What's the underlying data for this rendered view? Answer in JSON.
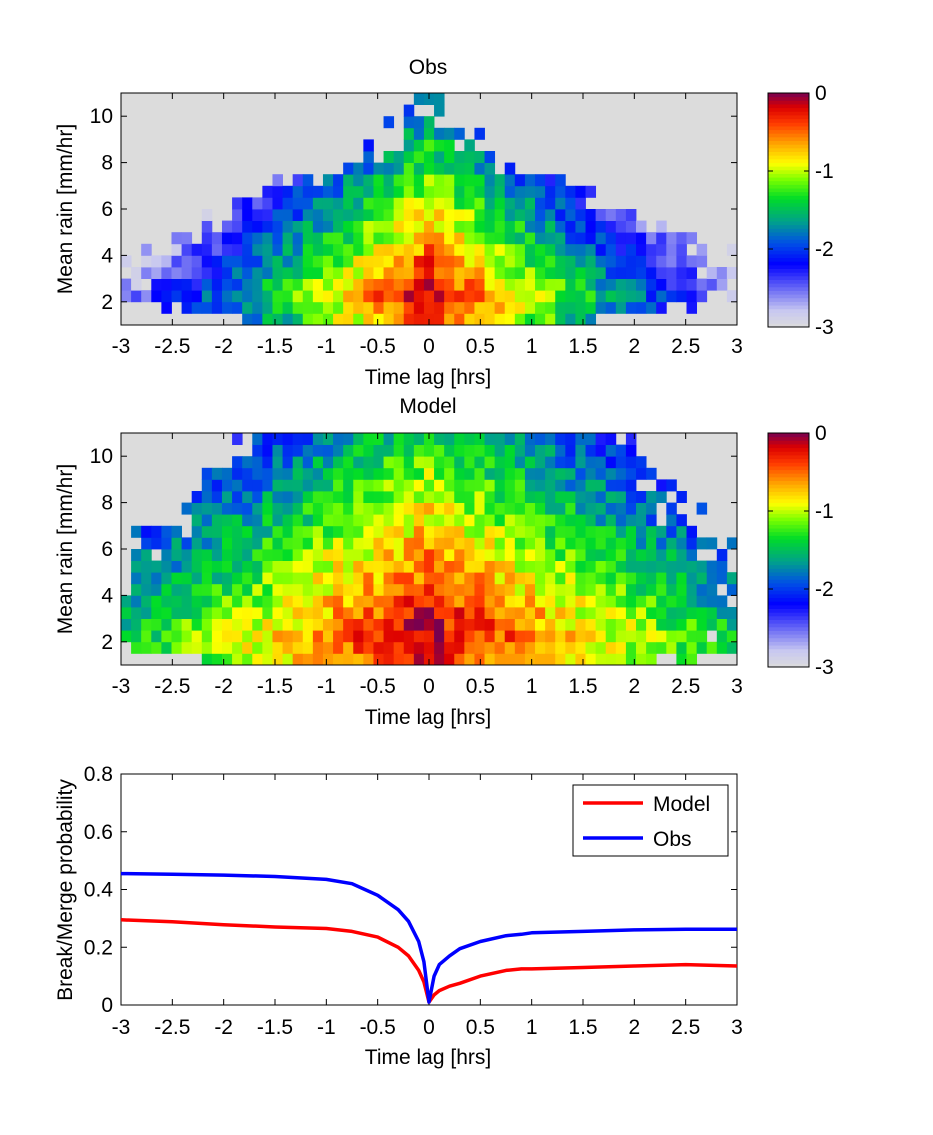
{
  "chart_data": [
    {
      "type": "heatmap",
      "title": "Obs",
      "xlabel": "Time lag [hrs]",
      "ylabel": "Mean rain [mm/hr]",
      "xlim": [
        -3,
        3
      ],
      "ylim": [
        1,
        11
      ],
      "xticks": [
        -3,
        -2.5,
        -2,
        -1.5,
        -1,
        -0.5,
        0,
        0.5,
        1,
        1.5,
        2,
        2.5,
        3
      ],
      "xtick_labels": [
        "-3",
        "-2.5",
        "-2",
        "-1.5",
        "-1",
        "-0.5",
        "0",
        "0.5",
        "1",
        "1.5",
        "2",
        "2.5",
        "3"
      ],
      "yticks": [
        2,
        4,
        6,
        8,
        10
      ],
      "ytick_labels": [
        "2",
        "4",
        "6",
        "8",
        "10"
      ],
      "colorbar": {
        "range": [
          -3,
          0
        ],
        "ticks": [
          0,
          -1,
          -2,
          -3
        ],
        "tick_labels": [
          "0",
          "-1",
          "-2",
          "-3"
        ]
      },
      "value_scale": "log10 probability",
      "shape": "peak near lag 0 at low rain (~2 mm/hr), values decreasing with |lag| and with rain rate; tail to ~10 mm/hr only near lag 0",
      "profile": {
        "lag_width_at_rain": [
          [
            1.0,
            1.3
          ],
          [
            2.0,
            3.0
          ],
          [
            3.0,
            2.9
          ],
          [
            4.0,
            2.8
          ],
          [
            5.0,
            2.3
          ],
          [
            6.0,
            1.9
          ],
          [
            7.0,
            1.5
          ],
          [
            8.0,
            0.7
          ],
          [
            9.0,
            0.3
          ],
          [
            10.0,
            0.15
          ]
        ],
        "peak_value": -0.1,
        "decay_per_hr": 0.85,
        "decay_per_mm": 0.2
      }
    },
    {
      "type": "heatmap",
      "title": "Model",
      "xlabel": "Time lag [hrs]",
      "ylabel": "Mean rain [mm/hr]",
      "xlim": [
        -3,
        3
      ],
      "ylim": [
        1,
        11
      ],
      "xticks": [
        -3,
        -2.5,
        -2,
        -1.5,
        -1,
        -0.5,
        0,
        0.5,
        1,
        1.5,
        2,
        2.5,
        3
      ],
      "xtick_labels": [
        "-3",
        "-2.5",
        "-2",
        "-1.5",
        "-1",
        "-0.5",
        "0",
        "0.5",
        "1",
        "1.5",
        "2",
        "2.5",
        "3"
      ],
      "yticks": [
        2,
        4,
        6,
        8,
        10
      ],
      "ytick_labels": [
        "2",
        "4",
        "6",
        "8",
        "10"
      ],
      "colorbar": {
        "range": [
          -3,
          0
        ],
        "ticks": [
          0,
          -1,
          -2,
          -3
        ],
        "tick_labels": [
          "0",
          "-1",
          "-2",
          "-3"
        ]
      },
      "value_scale": "log10 probability",
      "shape": "peak near lag 0 at ~1.5 mm/hr, broad orange/yellow band along 2 mm/hr, greens up to ~7 mm/hr, blues/greys at large lag and high rain",
      "profile": {
        "lag_width_at_rain": [
          [
            1.0,
            2.2
          ],
          [
            2.0,
            3.0
          ],
          [
            3.0,
            3.0
          ],
          [
            4.0,
            3.0
          ],
          [
            5.0,
            3.0
          ],
          [
            6.0,
            2.8
          ],
          [
            7.0,
            2.6
          ],
          [
            8.0,
            2.4
          ],
          [
            9.0,
            2.2
          ],
          [
            10.0,
            2.0
          ],
          [
            11.0,
            1.8
          ]
        ],
        "peak_value": -0.1,
        "decay_per_hr": 0.45,
        "decay_per_mm": 0.14
      }
    },
    {
      "type": "line",
      "title": "",
      "xlabel": "Time lag [hrs]",
      "ylabel": "Break/Merge probability",
      "xlim": [
        -3,
        3
      ],
      "ylim": [
        0,
        0.8
      ],
      "xticks": [
        -3,
        -2.5,
        -2,
        -1.5,
        -1,
        -0.5,
        0,
        0.5,
        1,
        1.5,
        2,
        2.5,
        3
      ],
      "xtick_labels": [
        "-3",
        "-2.5",
        "-2",
        "-1.5",
        "-1",
        "-0.5",
        "0",
        "0.5",
        "1",
        "1.5",
        "2",
        "2.5",
        "3"
      ],
      "yticks": [
        0,
        0.2,
        0.4,
        0.6,
        0.8
      ],
      "ytick_labels": [
        "0",
        "0.2",
        "0.4",
        "0.6",
        "0.8"
      ],
      "legend_position": "top-right",
      "series": [
        {
          "name": "Model",
          "color": "#ff0000",
          "x": [
            -3,
            -2.5,
            -2,
            -1.5,
            -1,
            -0.75,
            -0.5,
            -0.3,
            -0.2,
            -0.1,
            -0.05,
            0,
            0.05,
            0.1,
            0.2,
            0.3,
            0.5,
            0.75,
            0.9,
            1,
            1.5,
            2,
            2.5,
            3
          ],
          "y": [
            0.295,
            0.288,
            0.278,
            0.27,
            0.265,
            0.255,
            0.235,
            0.2,
            0.17,
            0.12,
            0.08,
            0.01,
            0.035,
            0.05,
            0.065,
            0.075,
            0.1,
            0.12,
            0.125,
            0.125,
            0.13,
            0.135,
            0.14,
            0.135
          ]
        },
        {
          "name": "Obs",
          "color": "#0000ff",
          "x": [
            -3,
            -2.5,
            -2,
            -1.5,
            -1,
            -0.75,
            -0.5,
            -0.3,
            -0.2,
            -0.1,
            -0.05,
            0,
            0.05,
            0.1,
            0.2,
            0.3,
            0.5,
            0.75,
            0.9,
            1,
            1.5,
            2,
            2.5,
            3
          ],
          "y": [
            0.455,
            0.453,
            0.45,
            0.445,
            0.435,
            0.42,
            0.38,
            0.33,
            0.29,
            0.22,
            0.15,
            0.01,
            0.1,
            0.14,
            0.17,
            0.195,
            0.22,
            0.24,
            0.245,
            0.25,
            0.255,
            0.26,
            0.262,
            0.262
          ]
        }
      ]
    }
  ]
}
